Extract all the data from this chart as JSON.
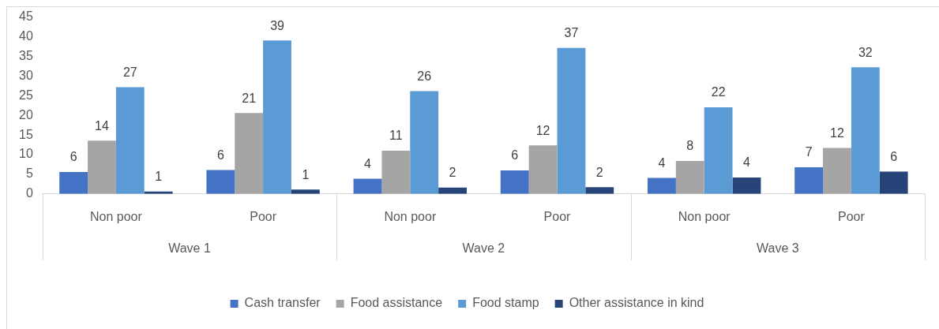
{
  "chart_data": {
    "type": "bar",
    "categories": [
      "Non poor",
      "Poor",
      "Non poor",
      "Poor",
      "Non poor",
      "Poor"
    ],
    "annotations": [
      "Wave 1",
      "Wave 2",
      "Wave 3"
    ],
    "series": [
      {
        "name": "Cash transfer",
        "color": "#4472c4",
        "values": [
          5.6,
          6.1,
          3.9,
          6,
          4.1,
          6.8
        ],
        "value_labels": [
          "6",
          "6",
          "4",
          "6",
          "4",
          "7"
        ]
      },
      {
        "name": "Food assistance",
        "color": "#a5a5a5",
        "values": [
          13.6,
          20.6,
          11,
          12.4,
          8.4,
          11.7
        ],
        "value_labels": [
          "14",
          "21",
          "11",
          "12",
          "8",
          "12"
        ]
      },
      {
        "name": "Food stamp",
        "color": "#5b9bd5",
        "values": [
          27.2,
          39.1,
          26.2,
          37.2,
          22.1,
          32.3
        ],
        "value_labels": [
          "27",
          "39",
          "26",
          "37",
          "22",
          "32"
        ]
      },
      {
        "name": "Other assistance in kind",
        "color": "#264478",
        "values": [
          0.6,
          1.1,
          1.6,
          1.7,
          4.2,
          5.7
        ],
        "value_labels": [
          "1",
          "1",
          "2",
          "2",
          "4",
          "6"
        ]
      }
    ],
    "ylim": [
      0,
      45
    ],
    "yticks": [
      0,
      5,
      10,
      15,
      20,
      25,
      30,
      35,
      40,
      45
    ],
    "grid": false,
    "legend": "bottom"
  }
}
